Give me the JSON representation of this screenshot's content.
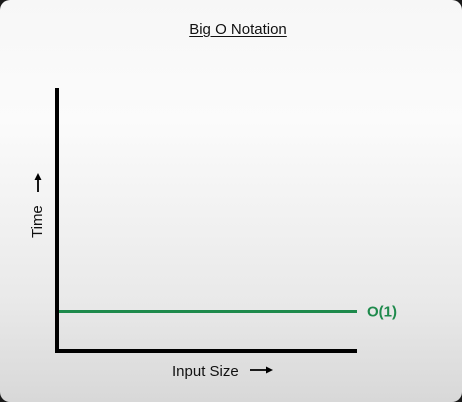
{
  "chart_data": {
    "type": "line",
    "title": "Big O Notation",
    "xlabel": "Input Size",
    "ylabel": "Time",
    "xlim": [
      0,
      10
    ],
    "ylim": [
      0,
      10
    ],
    "grid": false,
    "series": [
      {
        "name": "O(1)",
        "color": "#1e8a4c",
        "x": [
          0,
          10
        ],
        "y": [
          1.5,
          1.5
        ]
      }
    ],
    "axis_arrow_icon": "right-arrow-icon"
  }
}
